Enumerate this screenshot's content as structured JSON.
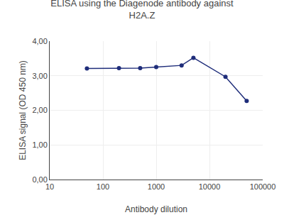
{
  "chart_data": {
    "type": "line",
    "title": "ELISA using the Diagenode antibody against\nH2A.Z",
    "xlabel": "Antibody dilution",
    "ylabel": "ELISA signal (OD 450 nm)",
    "x": [
      50,
      200,
      500,
      1000,
      3000,
      5000,
      20000,
      50000
    ],
    "values": [
      3.21,
      3.22,
      3.22,
      3.25,
      3.3,
      3.52,
      2.97,
      2.27
    ],
    "color": "#1f2d7a",
    "marker": "circle",
    "log": "x",
    "xlim": [
      10,
      100000
    ],
    "xticks": [
      10,
      100,
      1000,
      10000,
      100000
    ],
    "ylim": [
      0.0,
      4.0
    ],
    "yticks": [
      {
        "value": 0.0,
        "label": "0,00"
      },
      {
        "value": 1.0,
        "label": "1,00"
      },
      {
        "value": 2.0,
        "label": "2,00"
      },
      {
        "value": 3.0,
        "label": "3,00"
      },
      {
        "value": 4.0,
        "label": "4,00"
      }
    ],
    "grid": true
  }
}
